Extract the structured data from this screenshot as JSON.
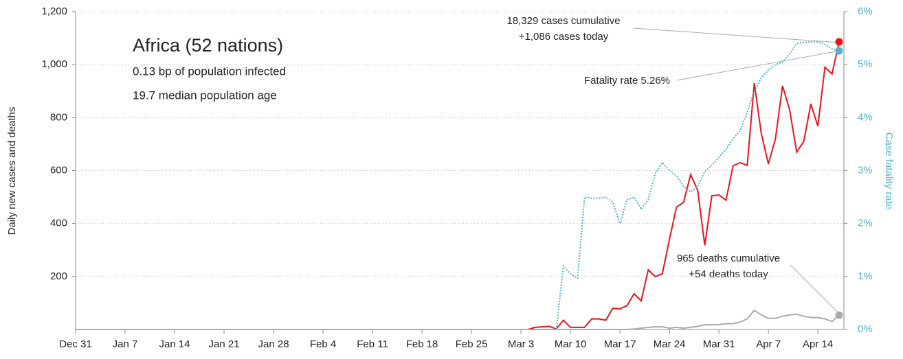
{
  "chart_data": {
    "type": "line",
    "title": "Africa (52 nations)",
    "subtitle": [
      "0.13 bp of population infected",
      "19.7 median population age"
    ],
    "ylabel": "Daily new cases and deaths",
    "y2label": "Case fatality rate",
    "annotations": [
      "18,329 cases cumulative",
      "+1,086 cases today",
      "Fatality rate 5.26%",
      "965 deaths cumulative",
      "+54 deaths today"
    ],
    "x": [
      "Dec 31",
      "Jan 1",
      "Jan 2",
      "Jan 3",
      "Jan 4",
      "Jan 5",
      "Jan 6",
      "Jan 7",
      "Jan 8",
      "Jan 9",
      "Jan 10",
      "Jan 11",
      "Jan 12",
      "Jan 13",
      "Jan 14",
      "Jan 15",
      "Jan 16",
      "Jan 17",
      "Jan 18",
      "Jan 19",
      "Jan 20",
      "Jan 21",
      "Jan 22",
      "Jan 23",
      "Jan 24",
      "Jan 25",
      "Jan 26",
      "Jan 27",
      "Jan 28",
      "Jan 29",
      "Jan 30",
      "Jan 31",
      "Feb 1",
      "Feb 2",
      "Feb 3",
      "Feb 4",
      "Feb 5",
      "Feb 6",
      "Feb 7",
      "Feb 8",
      "Feb 9",
      "Feb 10",
      "Feb 11",
      "Feb 12",
      "Feb 13",
      "Feb 14",
      "Feb 15",
      "Feb 16",
      "Feb 17",
      "Feb 18",
      "Feb 19",
      "Feb 20",
      "Feb 21",
      "Feb 22",
      "Feb 23",
      "Feb 24",
      "Feb 25",
      "Feb 26",
      "Feb 27",
      "Feb 28",
      "Feb 29",
      "Mar 1",
      "Mar 2",
      "Mar 3",
      "Mar 4",
      "Mar 5",
      "Mar 6",
      "Mar 7",
      "Mar 8",
      "Mar 9",
      "Mar 10",
      "Mar 11",
      "Mar 12",
      "Mar 13",
      "Mar 14",
      "Mar 15",
      "Mar 16",
      "Mar 17",
      "Mar 18",
      "Mar 19",
      "Mar 20",
      "Mar 21",
      "Mar 22",
      "Mar 23",
      "Mar 24",
      "Mar 25",
      "Mar 26",
      "Mar 27",
      "Mar 28",
      "Mar 29",
      "Mar 30",
      "Mar 31",
      "Apr 1",
      "Apr 2",
      "Apr 3",
      "Apr 4",
      "Apr 5",
      "Apr 6",
      "Apr 7",
      "Apr 8",
      "Apr 9",
      "Apr 10",
      "Apr 11",
      "Apr 12",
      "Apr 13",
      "Apr 14",
      "Apr 15",
      "Apr 16",
      "Apr 17"
    ],
    "xticks": [
      "Dec 31",
      "Jan 7",
      "Jan 14",
      "Jan 21",
      "Jan 28",
      "Feb 4",
      "Feb 11",
      "Feb 18",
      "Feb 25",
      "Mar 3",
      "Mar 10",
      "Mar 17",
      "Mar 24",
      "Mar 31",
      "Apr 7",
      "Apr 14"
    ],
    "series": [
      {
        "color": "#e8141b",
        "values": [
          0,
          0,
          0,
          0,
          0,
          0,
          0,
          0,
          0,
          0,
          0,
          0,
          0,
          0,
          0,
          0,
          0,
          0,
          0,
          0,
          0,
          0,
          0,
          0,
          0,
          0,
          0,
          0,
          0,
          0,
          0,
          0,
          0,
          0,
          0,
          0,
          0,
          0,
          0,
          0,
          0,
          0,
          0,
          0,
          0,
          0,
          0,
          0,
          0,
          0,
          0,
          0,
          0,
          0,
          0,
          0,
          0,
          0,
          0,
          0,
          0,
          0,
          0,
          0,
          0,
          8,
          10,
          12,
          2,
          35,
          8,
          8,
          8,
          40,
          40,
          35,
          80,
          78,
          90,
          135,
          108,
          225,
          200,
          210,
          340,
          462,
          480,
          585,
          525,
          318,
          505,
          508,
          488,
          618,
          630,
          620,
          930,
          740,
          625,
          720,
          920,
          830,
          670,
          710,
          852,
          768,
          990,
          965,
          1086
        ]
      },
      {
        "color": "#4fb3cc",
        "axis": "y2",
        "dash": true,
        "values": [
          null,
          null,
          null,
          null,
          null,
          null,
          null,
          null,
          null,
          null,
          null,
          null,
          null,
          null,
          null,
          null,
          null,
          null,
          null,
          null,
          null,
          null,
          null,
          null,
          null,
          null,
          null,
          null,
          null,
          null,
          null,
          null,
          null,
          null,
          null,
          null,
          null,
          null,
          null,
          null,
          null,
          null,
          null,
          null,
          null,
          null,
          null,
          null,
          null,
          null,
          null,
          null,
          null,
          null,
          null,
          null,
          null,
          null,
          null,
          null,
          null,
          null,
          null,
          null,
          null,
          null,
          null,
          null,
          0,
          1.2,
          1.05,
          0.97,
          2.5,
          2.48,
          2.48,
          2.5,
          2.4,
          2.0,
          2.45,
          2.5,
          2.27,
          2.45,
          2.95,
          3.15,
          3.0,
          2.9,
          2.7,
          2.6,
          2.7,
          2.98,
          3.1,
          3.25,
          3.4,
          3.6,
          3.75,
          4.1,
          4.5,
          4.75,
          4.9,
          5.0,
          5.05,
          5.2,
          5.4,
          5.42,
          5.43,
          5.43,
          5.38,
          5.3,
          5.26
        ]
      },
      {
        "color": "#aaaaaa",
        "values": [
          0,
          0,
          0,
          0,
          0,
          0,
          0,
          0,
          0,
          0,
          0,
          0,
          0,
          0,
          0,
          0,
          0,
          0,
          0,
          0,
          0,
          0,
          0,
          0,
          0,
          0,
          0,
          0,
          0,
          0,
          0,
          0,
          0,
          0,
          0,
          0,
          0,
          0,
          0,
          0,
          0,
          0,
          0,
          0,
          0,
          0,
          0,
          0,
          0,
          0,
          0,
          0,
          0,
          0,
          0,
          0,
          0,
          0,
          0,
          0,
          0,
          0,
          0,
          0,
          0,
          0,
          0,
          0,
          0,
          0,
          0,
          0,
          0,
          0,
          0,
          0,
          0,
          0,
          0,
          2,
          5,
          8,
          10,
          10,
          5,
          8,
          5,
          8,
          12,
          18,
          18,
          18,
          22,
          22,
          28,
          40,
          72,
          55,
          42,
          42,
          50,
          55,
          58,
          50,
          45,
          45,
          40,
          30,
          54
        ]
      }
    ],
    "ylim": [
      0,
      1200
    ],
    "yticks": [
      200,
      400,
      600,
      800,
      {
        "value": 1000,
        "label": "1,000"
      },
      {
        "value": 1200,
        "label": "1,200"
      }
    ],
    "y2lim": [
      0,
      6
    ],
    "y2ticks": [
      {
        "value": 0,
        "label": "0%"
      },
      {
        "value": 1,
        "label": "1%"
      },
      {
        "value": 2,
        "label": "2%"
      },
      {
        "value": 3,
        "label": "3%"
      },
      {
        "value": 4,
        "label": "4%"
      },
      {
        "value": 5,
        "label": "5%"
      },
      {
        "value": 6,
        "label": "6%"
      }
    ],
    "grid": true
  }
}
